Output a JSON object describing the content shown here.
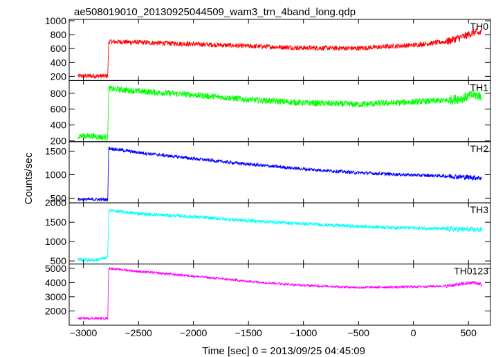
{
  "chart_data": {
    "type": "line",
    "title": "ae508019010_20130925044509_wam3_trn_4band_long.qdp",
    "xlabel": "Time [sec] 0 = 2013/09/25 04:45:09",
    "ylabel": "Counts/sec",
    "xlim": [
      -3130,
      700
    ],
    "x_ticks": [
      -3000,
      -2500,
      -2000,
      -1500,
      -1000,
      -500,
      0,
      500
    ],
    "x_tick_labels": [
      "−3000",
      "−2500",
      "−2000",
      "−1500",
      "−1000",
      "−500",
      "0",
      "500"
    ],
    "panels": [
      {
        "name": "TH0",
        "color": "#ff0000",
        "ylim": [
          140,
          1020
        ],
        "y_ticks": [
          200,
          400,
          600,
          800,
          1000
        ],
        "y_tick_labels": [
          "200",
          "400",
          "600",
          "800",
          "1000"
        ],
        "noise": 35,
        "points": [
          [
            -3050,
            205
          ],
          [
            -2780,
            205
          ],
          [
            -2770,
            700
          ],
          [
            -2500,
            690
          ],
          [
            -2000,
            665
          ],
          [
            -1500,
            635
          ],
          [
            -1000,
            610
          ],
          [
            -500,
            605
          ],
          [
            0,
            650
          ],
          [
            300,
            700
          ],
          [
            450,
            770
          ],
          [
            550,
            830
          ],
          [
            620,
            820
          ]
        ]
      },
      {
        "name": "TH1",
        "color": "#00ff00",
        "ylim": [
          190,
          960
        ],
        "y_ticks": [
          200,
          400,
          600,
          800
        ],
        "y_tick_labels": [
          "200",
          "400",
          "600",
          "800"
        ],
        "noise": 40,
        "points": [
          [
            -3050,
            265
          ],
          [
            -2900,
            260
          ],
          [
            -2780,
            240
          ],
          [
            -2770,
            860
          ],
          [
            -2500,
            825
          ],
          [
            -2000,
            780
          ],
          [
            -1500,
            720
          ],
          [
            -1000,
            680
          ],
          [
            -500,
            660
          ],
          [
            0,
            690
          ],
          [
            300,
            710
          ],
          [
            450,
            740
          ],
          [
            550,
            780
          ],
          [
            620,
            760
          ]
        ]
      },
      {
        "name": "TH2",
        "color": "#0000ff",
        "ylim": [
          400,
          1700
        ],
        "y_ticks": [
          500,
          1000,
          1500
        ],
        "y_tick_labels": [
          "500",
          "1000",
          "1500"
        ],
        "noise": 35,
        "points": [
          [
            -3050,
            475
          ],
          [
            -2780,
            470
          ],
          [
            -2770,
            1560
          ],
          [
            -2500,
            1470
          ],
          [
            -2000,
            1340
          ],
          [
            -1500,
            1220
          ],
          [
            -1000,
            1120
          ],
          [
            -500,
            1040
          ],
          [
            0,
            990
          ],
          [
            300,
            970
          ],
          [
            620,
            930
          ]
        ]
      },
      {
        "name": "TH3",
        "color": "#00ffff",
        "ylim": [
          420,
          2000
        ],
        "y_ticks": [
          500,
          1000,
          1500,
          2000
        ],
        "y_tick_labels": [
          "500",
          "1000",
          "1500",
          "2000"
        ],
        "noise": 45,
        "points": [
          [
            -3050,
            540
          ],
          [
            -2900,
            520
          ],
          [
            -2780,
            580
          ],
          [
            -2770,
            1810
          ],
          [
            -2500,
            1720
          ],
          [
            -2000,
            1640
          ],
          [
            -1500,
            1540
          ],
          [
            -1000,
            1460
          ],
          [
            -500,
            1390
          ],
          [
            0,
            1350
          ],
          [
            300,
            1330
          ],
          [
            620,
            1300
          ]
        ]
      },
      {
        "name": "TH0123",
        "color": "#ff00ff",
        "ylim": [
          1000,
          5300
        ],
        "y_ticks": [
          2000,
          3000,
          4000,
          5000
        ],
        "y_tick_labels": [
          "2000",
          "3000",
          "4000",
          "5000"
        ],
        "noise": 80,
        "points": [
          [
            -3050,
            1480
          ],
          [
            -2780,
            1480
          ],
          [
            -2770,
            5000
          ],
          [
            -2500,
            4780
          ],
          [
            -2000,
            4450
          ],
          [
            -1500,
            4080
          ],
          [
            -1000,
            3800
          ],
          [
            -500,
            3650
          ],
          [
            0,
            3700
          ],
          [
            300,
            3760
          ],
          [
            450,
            3900
          ],
          [
            550,
            4000
          ],
          [
            620,
            3850
          ]
        ]
      }
    ],
    "grid": false,
    "legend": "none"
  }
}
